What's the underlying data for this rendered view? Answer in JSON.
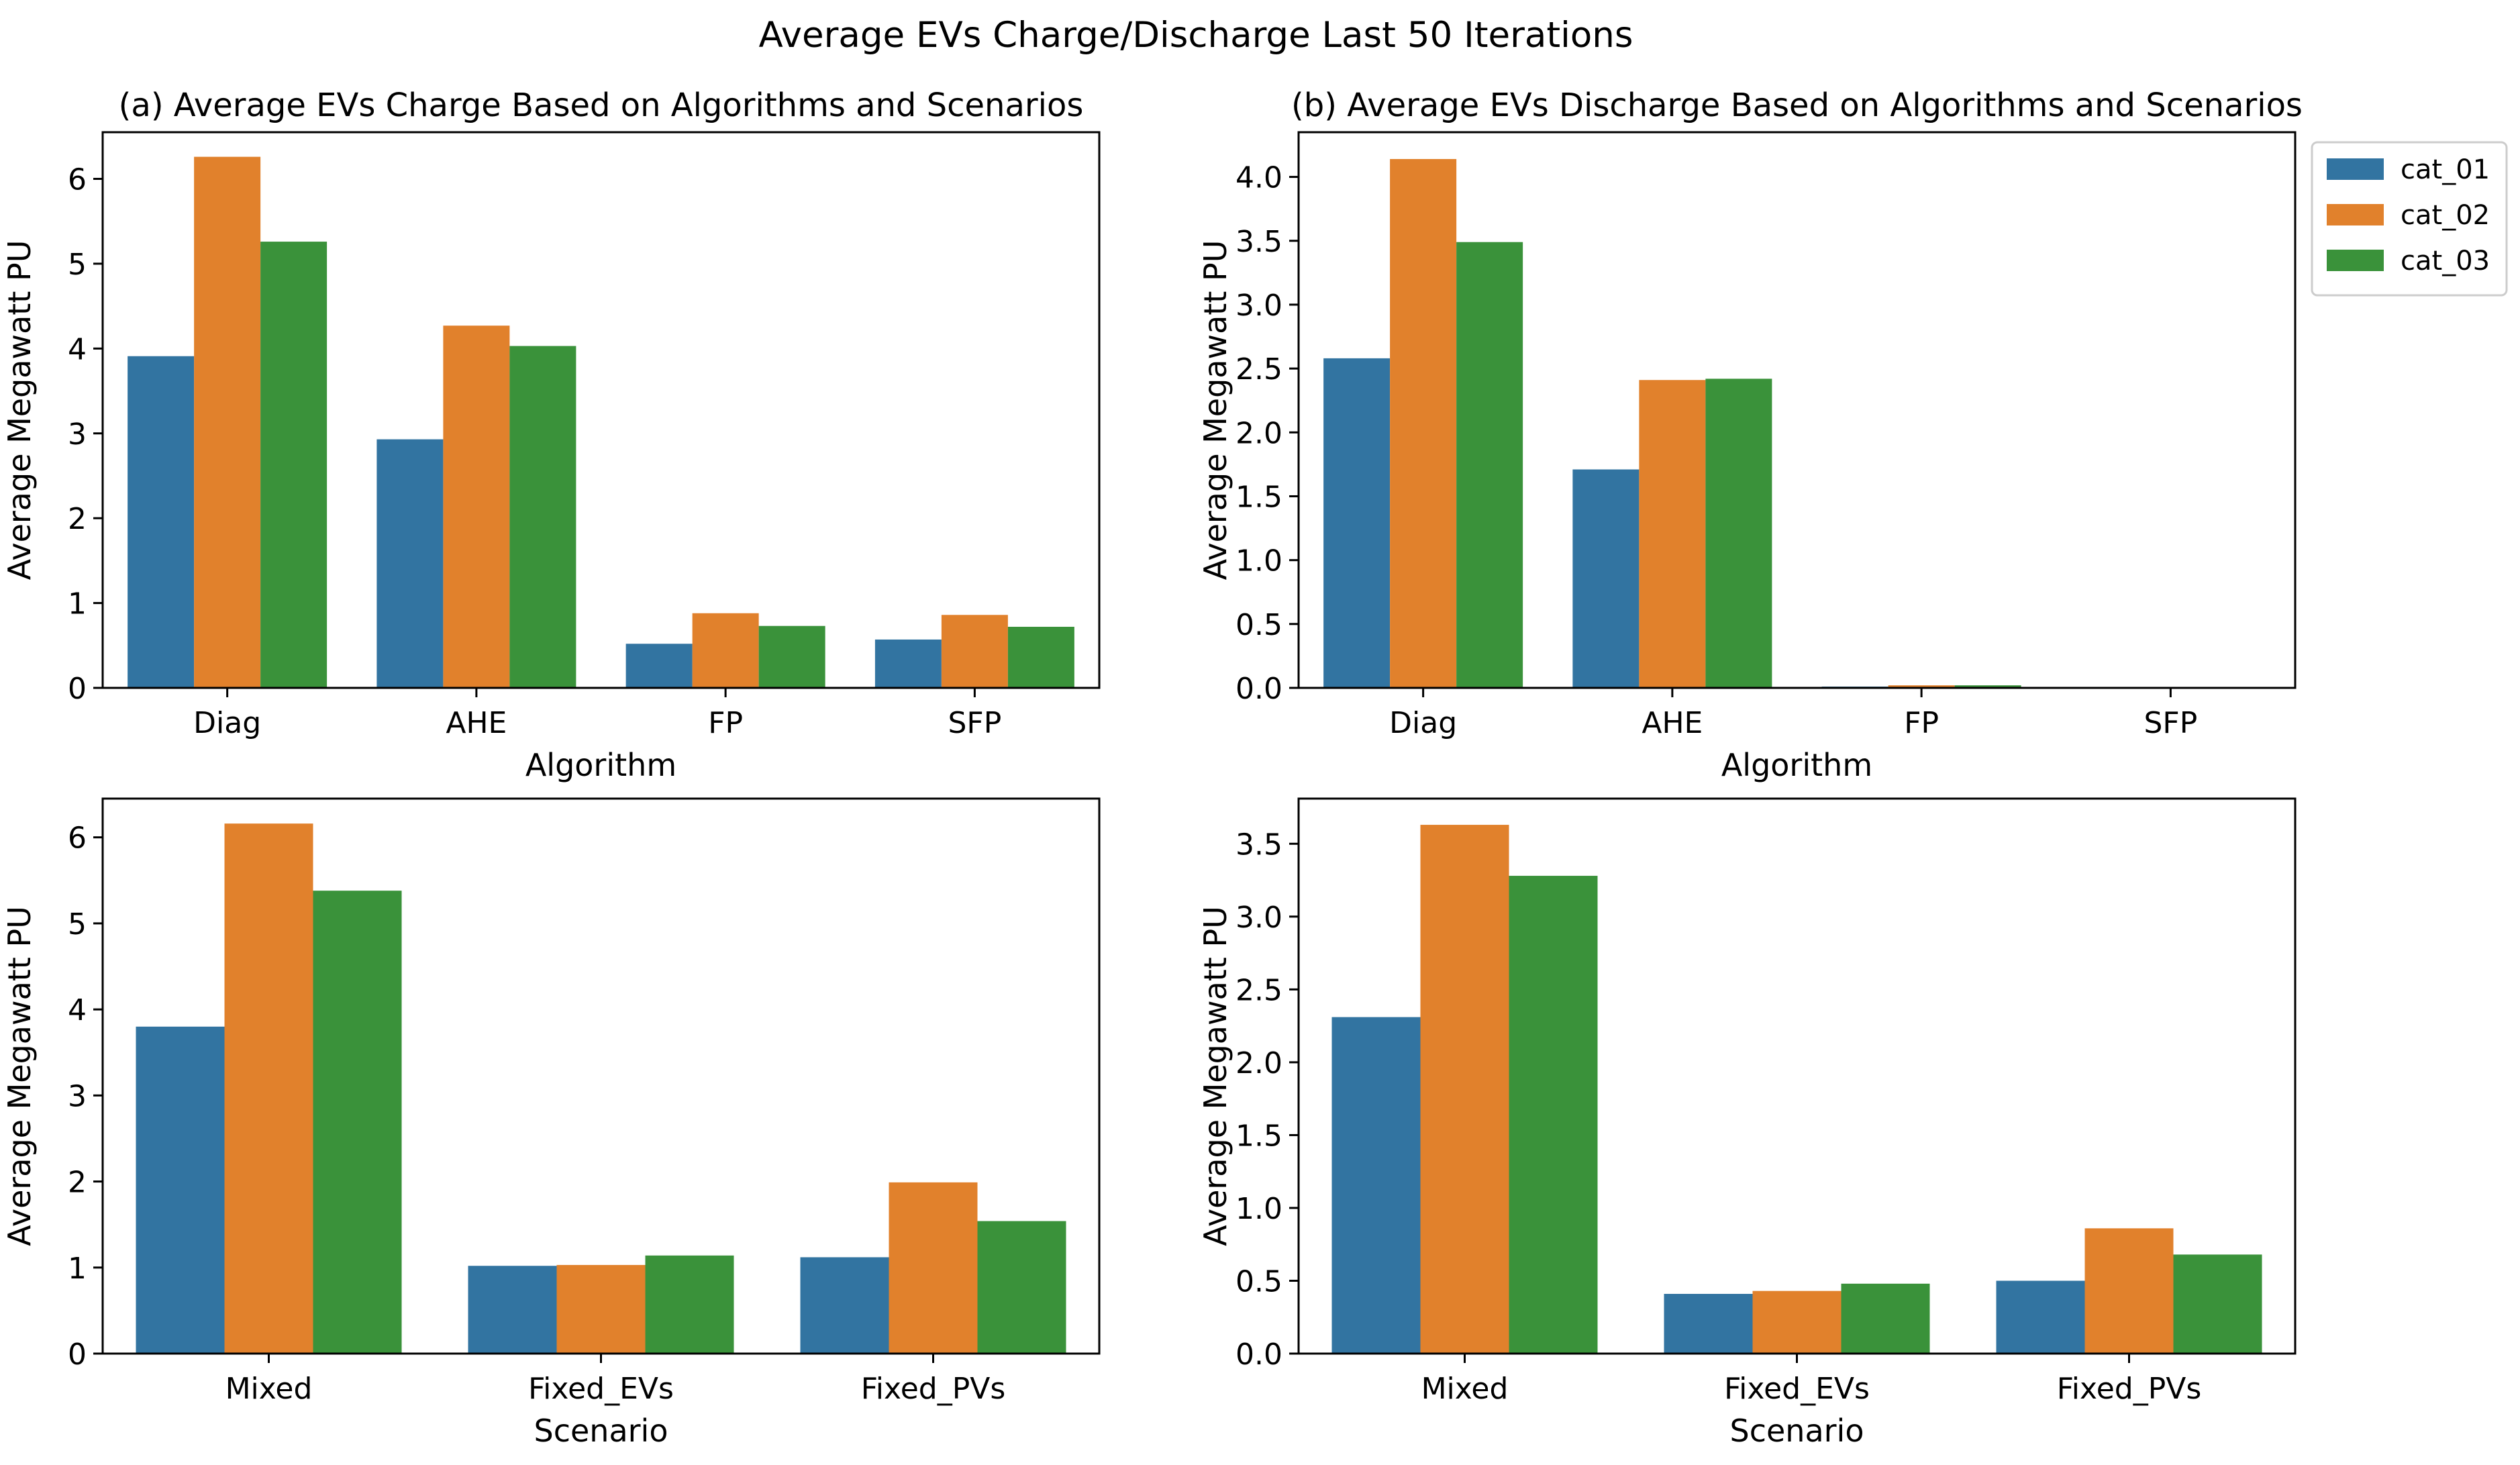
{
  "figure": {
    "suptitle": "Average EVs Charge/Discharge Last 50 Iterations"
  },
  "legend": {
    "placement": "upper-right, outside panel (b)",
    "entries": [
      {
        "name": "cat_01",
        "color": "#3274a1"
      },
      {
        "name": "cat_02",
        "color": "#e1812c"
      },
      {
        "name": "cat_03",
        "color": "#3a923a"
      }
    ]
  },
  "chart_data": [
    {
      "panel": "top-left",
      "type": "bar",
      "title": "(a) Average EVs Charge Based on Algorithms and Scenarios",
      "xlabel": "Algorithm",
      "ylabel": "Average Megawatt PU",
      "categories": [
        "Diag",
        "AHE",
        "FP",
        "SFP"
      ],
      "ylim": [
        0,
        6.55
      ],
      "yticks": [
        0,
        1,
        2,
        3,
        4,
        5,
        6
      ],
      "tick_decimals": 0,
      "grid": false,
      "series": [
        {
          "name": "cat_01",
          "values": [
            3.91,
            2.93,
            0.52,
            0.57
          ]
        },
        {
          "name": "cat_02",
          "values": [
            6.26,
            4.27,
            0.88,
            0.86
          ]
        },
        {
          "name": "cat_03",
          "values": [
            5.26,
            4.03,
            0.73,
            0.72
          ]
        }
      ]
    },
    {
      "panel": "top-right",
      "type": "bar",
      "title": "(b) Average EVs Discharge Based on Algorithms and Scenarios",
      "xlabel": "Algorithm",
      "ylabel": "Average Megawatt PU",
      "categories": [
        "Diag",
        "AHE",
        "FP",
        "SFP"
      ],
      "ylim": [
        0,
        4.35
      ],
      "yticks": [
        0.0,
        0.5,
        1.0,
        1.5,
        2.0,
        2.5,
        3.0,
        3.5,
        4.0
      ],
      "tick_decimals": 1,
      "grid": false,
      "series": [
        {
          "name": "cat_01",
          "values": [
            2.58,
            1.71,
            0.01,
            0.0
          ]
        },
        {
          "name": "cat_02",
          "values": [
            4.14,
            2.41,
            0.02,
            0.005
          ]
        },
        {
          "name": "cat_03",
          "values": [
            3.49,
            2.42,
            0.02,
            0.0
          ]
        }
      ]
    },
    {
      "panel": "bottom-left",
      "type": "bar",
      "title": "",
      "xlabel": "Scenario",
      "ylabel": "Average Megawatt PU",
      "categories": [
        "Mixed",
        "Fixed_EVs",
        "Fixed_PVs"
      ],
      "ylim": [
        0,
        6.45
      ],
      "yticks": [
        0,
        1,
        2,
        3,
        4,
        5,
        6
      ],
      "tick_decimals": 0,
      "grid": false,
      "series": [
        {
          "name": "cat_01",
          "values": [
            3.8,
            1.02,
            1.12
          ]
        },
        {
          "name": "cat_02",
          "values": [
            6.16,
            1.03,
            1.99
          ]
        },
        {
          "name": "cat_03",
          "values": [
            5.38,
            1.14,
            1.54
          ]
        }
      ]
    },
    {
      "panel": "bottom-right",
      "type": "bar",
      "title": "",
      "xlabel": "Scenario",
      "ylabel": "Average Megawatt PU",
      "categories": [
        "Mixed",
        "Fixed_EVs",
        "Fixed_PVs"
      ],
      "ylim": [
        0,
        3.81
      ],
      "yticks": [
        0.0,
        0.5,
        1.0,
        1.5,
        2.0,
        2.5,
        3.0,
        3.5
      ],
      "tick_decimals": 1,
      "grid": false,
      "series": [
        {
          "name": "cat_01",
          "values": [
            2.31,
            0.41,
            0.5
          ]
        },
        {
          "name": "cat_02",
          "values": [
            3.63,
            0.43,
            0.86
          ]
        },
        {
          "name": "cat_03",
          "values": [
            3.28,
            0.48,
            0.68
          ]
        }
      ]
    }
  ]
}
